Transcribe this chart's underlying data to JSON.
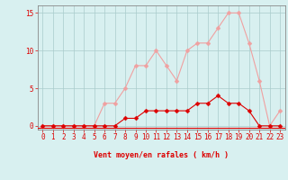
{
  "x": [
    0,
    1,
    2,
    3,
    4,
    5,
    6,
    7,
    8,
    9,
    10,
    11,
    12,
    13,
    14,
    15,
    16,
    17,
    18,
    19,
    20,
    21,
    22,
    23
  ],
  "y_mean": [
    0,
    0,
    0,
    0,
    0,
    0,
    0,
    0,
    1,
    1,
    2,
    2,
    2,
    2,
    2,
    3,
    3,
    4,
    3,
    3,
    2,
    0,
    0,
    0
  ],
  "y_gust": [
    0,
    0,
    0,
    0,
    0,
    0,
    3,
    3,
    5,
    8,
    8,
    10,
    8,
    6,
    10,
    11,
    11,
    13,
    15,
    15,
    11,
    6,
    0,
    2
  ],
  "line_color_mean": "#dd0000",
  "line_color_gust": "#f0a0a0",
  "marker_size": 2.5,
  "bg_color": "#d8f0f0",
  "grid_color": "#aacccc",
  "xlabel": "Vent moyen/en rafales ( km/h )",
  "yticks": [
    0,
    5,
    10,
    15
  ],
  "xtick_labels": [
    "0",
    "1",
    "2",
    "3",
    "4",
    "5",
    "6",
    "7",
    "8",
    "9",
    "10",
    "11",
    "12",
    "13",
    "14",
    "15",
    "16",
    "17",
    "18",
    "19",
    "20",
    "21",
    "22",
    "23"
  ],
  "ylim": [
    -0.5,
    16
  ],
  "xlim": [
    -0.5,
    23.5
  ],
  "label_fontsize": 6,
  "tick_fontsize": 5.5
}
